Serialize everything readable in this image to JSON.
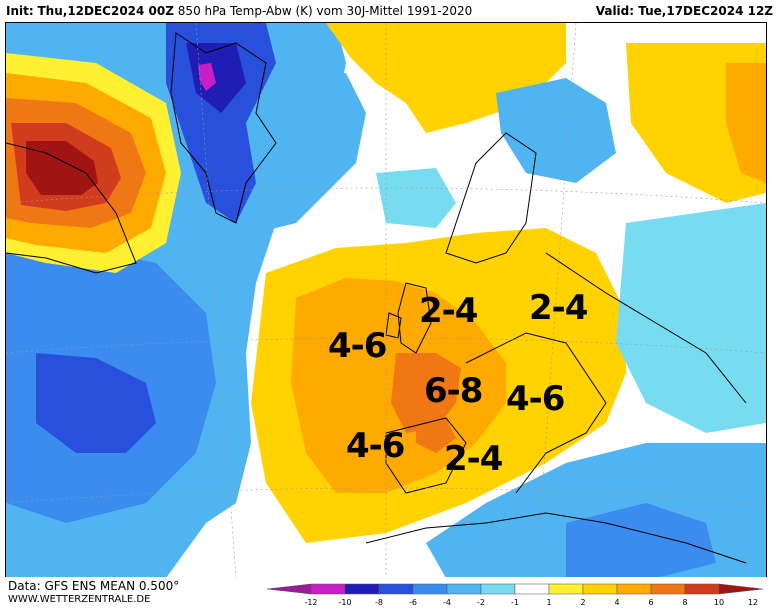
{
  "header": {
    "init_label": "Init:",
    "init_value": "Thu,12DEC2024 00Z",
    "title": "850 hPa Temp-Abw (K) vom 30J-Mittel 1991-2020",
    "valid_label": "Valid:",
    "valid_value": "Tue,17DEC2024 12Z"
  },
  "annotations": [
    {
      "id": "uk-north",
      "text": "2-4"
    },
    {
      "id": "central-europe",
      "text": "2-4"
    },
    {
      "id": "atlantic",
      "text": "4-6"
    },
    {
      "id": "france",
      "text": "6-8"
    },
    {
      "id": "alps",
      "text": "4-6"
    },
    {
      "id": "iberia",
      "text": "4-6"
    },
    {
      "id": "mediterranean",
      "text": "2-4"
    }
  ],
  "legend": {
    "colors": [
      "#9b1a9b",
      "#c81ec8",
      "#1e1eb4",
      "#2850dc",
      "#3c8cf0",
      "#50b4f0",
      "#78dcf0",
      "#ffffff",
      "#fff032",
      "#ffd200",
      "#ffaa00",
      "#f07814",
      "#d23c1e",
      "#a01414"
    ],
    "ticks": [
      "-12",
      "-10",
      "-8",
      "-6",
      "-4",
      "-2",
      "-1",
      "1",
      "2",
      "4",
      "6",
      "8",
      "10",
      "12"
    ]
  },
  "footer": {
    "data_source": "Data: GFS ENS MEAN 0.500°",
    "website": "WWW.WETTERZENTRALE.DE"
  }
}
